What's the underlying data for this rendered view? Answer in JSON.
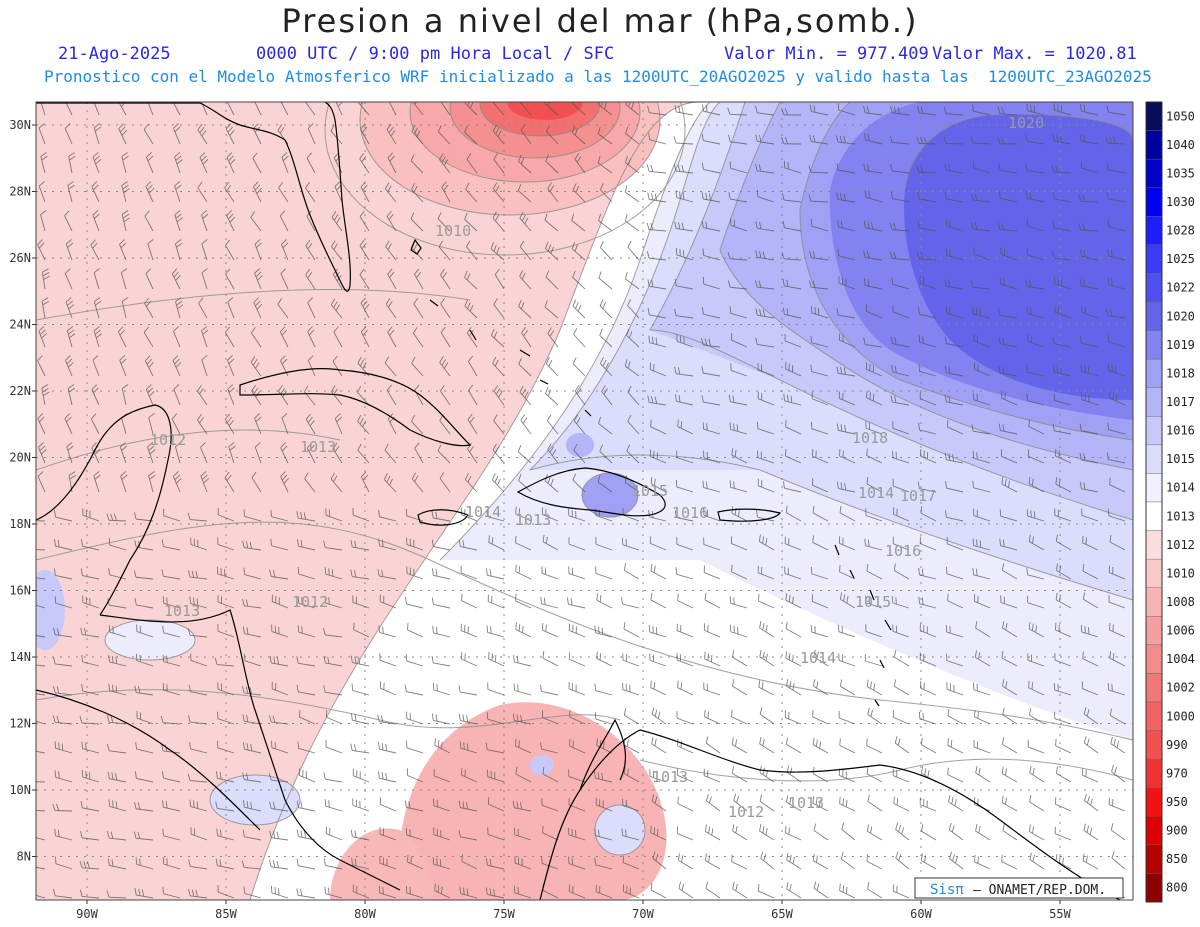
{
  "header": {
    "title": "Presion a nivel del mar (hPa,somb.)",
    "date": "21-Ago-2025",
    "time_info": "0000 UTC / 9:00 pm Hora Local / SFC",
    "min_value": "Valor Min. = 977.409",
    "max_value": "Valor Max. = 1020.81",
    "model_info": "Pronostico con el Modelo Atmosferico WRF inicializado a las 1200UTC_20AGO2025 y valido hasta las  1200UTC_23AGO2025"
  },
  "axes": {
    "lat_ticks": [
      "30N",
      "28N",
      "26N",
      "24N",
      "22N",
      "20N",
      "18N",
      "16N",
      "14N",
      "12N",
      "10N",
      "8N"
    ],
    "lon_ticks": [
      "90W",
      "85W",
      "80W",
      "75W",
      "70W",
      "65W",
      "60W",
      "55W"
    ]
  },
  "colorbar": {
    "levels": [
      "1050",
      "1040",
      "1035",
      "1030",
      "1028",
      "1025",
      "1022",
      "1020",
      "1019",
      "1018",
      "1017",
      "1016",
      "1015",
      "1014",
      "1013",
      "1012",
      "1010",
      "1008",
      "1006",
      "1004",
      "1002",
      "1000",
      "990",
      "970",
      "950",
      "900",
      "850",
      "800"
    ],
    "colors": [
      "#0a0a5a",
      "#0000a0",
      "#0000c8",
      "#0000f0",
      "#1e1efa",
      "#3c3cf5",
      "#5050f0",
      "#6464eb",
      "#8282f0",
      "#a0a0f5",
      "#b4b4f8",
      "#c8c8fa",
      "#dcdcfc",
      "#f0f0ff",
      "#ffffff",
      "#fcdcdc",
      "#fac8c8",
      "#f8b4b4",
      "#f5a0a0",
      "#f28c8c",
      "#f07878",
      "#f06464",
      "#f05050",
      "#f03232",
      "#f01414",
      "#dc0000",
      "#b40000",
      "#8c0000"
    ]
  },
  "contour_labels": [
    {
      "text": "1020"
    },
    {
      "text": "1010"
    },
    {
      "text": "1012"
    },
    {
      "text": "1013"
    },
    {
      "text": "1018"
    },
    {
      "text": "1017"
    },
    {
      "text": "1016"
    },
    {
      "text": "1015"
    },
    {
      "text": "1014"
    },
    {
      "text": "1013"
    },
    {
      "text": "1016"
    },
    {
      "text": "1014"
    },
    {
      "text": "1015"
    },
    {
      "text": "1012"
    },
    {
      "text": "1013"
    },
    {
      "text": "1013"
    },
    {
      "text": "1012"
    },
    {
      "text": "1013"
    },
    {
      "text": "1014"
    }
  ],
  "credit": {
    "brand": "Sisπ",
    "text": "– ONAMET/REP.DOM."
  }
}
